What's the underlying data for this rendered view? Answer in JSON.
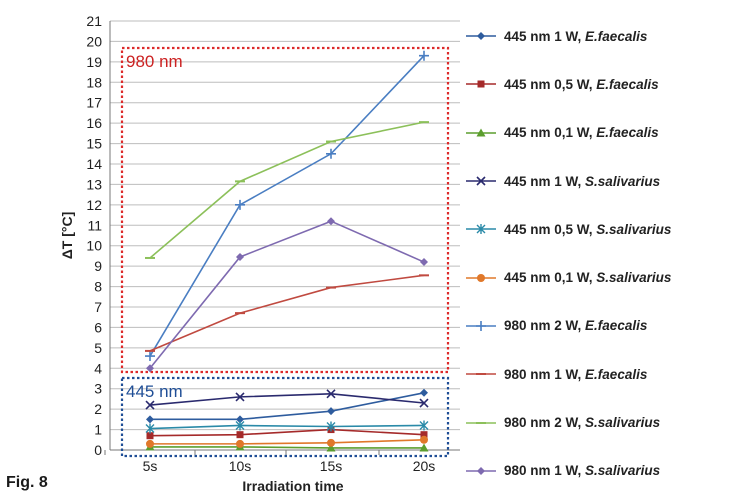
{
  "figure_label": "Fig. 8",
  "chart_data": {
    "type": "line",
    "xlabel": "Irradiation time",
    "ylabel": "ΔT [°C]",
    "categories": [
      "5s",
      "10s",
      "15s",
      "20s"
    ],
    "ylim": [
      0,
      21
    ],
    "yticks": [
      0,
      1,
      2,
      3,
      4,
      5,
      6,
      7,
      8,
      9,
      10,
      11,
      12,
      13,
      14,
      15,
      16,
      17,
      18,
      19,
      20,
      21
    ],
    "grid": true,
    "legend_position": "right",
    "annotations": [
      {
        "text": "980 nm",
        "color": "#cc2222"
      },
      {
        "text": "445 nm",
        "color": "#1f4e96"
      }
    ],
    "series": [
      {
        "name": "445 nm 1 W, E.faecalis",
        "wavelength": "445 nm 1 W,",
        "species": "E.faecalis",
        "color": "#2e5c9e",
        "marker": "diamond",
        "values": [
          1.5,
          1.5,
          1.9,
          2.8
        ]
      },
      {
        "name": "445 nm 0,5 W, E.faecalis",
        "wavelength": "445 nm 0,5 W,",
        "species": "E.faecalis",
        "color": "#a52a2a",
        "marker": "square",
        "values": [
          0.7,
          0.75,
          1.0,
          0.75
        ]
      },
      {
        "name": "445 nm 0,1 W, E.faecalis",
        "wavelength": "445 nm 0,1 W,",
        "species": "E.faecalis",
        "color": "#5c9e2e",
        "marker": "triangle",
        "values": [
          0.15,
          0.15,
          0.1,
          0.1
        ]
      },
      {
        "name": "445 nm 1 W, S.salivarius",
        "wavelength": "445 nm 1 W,",
        "species": "S.salivarius",
        "color": "#2a2a6e",
        "marker": "x",
        "values": [
          2.2,
          2.6,
          2.75,
          2.3
        ]
      },
      {
        "name": "445 nm 0,5 W, S.salivarius",
        "wavelength": "445 nm 0,5 W,",
        "species": "S.salivarius",
        "color": "#2a8aa8",
        "marker": "star",
        "values": [
          1.05,
          1.2,
          1.15,
          1.2
        ]
      },
      {
        "name": "445 nm 0,1 W, S.salivarius",
        "wavelength": "445 nm 0,1 W,",
        "species": "S.salivarius",
        "color": "#e0782a",
        "marker": "circle",
        "values": [
          0.3,
          0.3,
          0.35,
          0.5
        ]
      },
      {
        "name": "980 nm 2 W, E.faecalis",
        "wavelength": "980 nm 2 W,",
        "species": "E.faecalis",
        "color": "#4a7ec2",
        "marker": "plus",
        "values": [
          4.6,
          12.0,
          14.5,
          19.3
        ]
      },
      {
        "name": "980 nm 1 W, E.faecalis",
        "wavelength": "980 nm 1 W,",
        "species": "E.faecalis",
        "color": "#c04a40",
        "marker": "dash",
        "values": [
          4.85,
          6.7,
          7.95,
          8.55
        ]
      },
      {
        "name": "980 nm 2 W, S.salivarius",
        "wavelength": "980 nm 2 W,",
        "species": "S.salivarius",
        "color": "#8cc05a",
        "marker": "dash",
        "values": [
          9.4,
          13.15,
          15.1,
          16.05
        ]
      },
      {
        "name": "980 nm 1 W, S.salivarius",
        "wavelength": "980 nm 1 W,",
        "species": "S.salivarius",
        "color": "#7e6ab0",
        "marker": "diamond",
        "values": [
          4.0,
          9.45,
          11.2,
          9.2
        ]
      }
    ]
  }
}
